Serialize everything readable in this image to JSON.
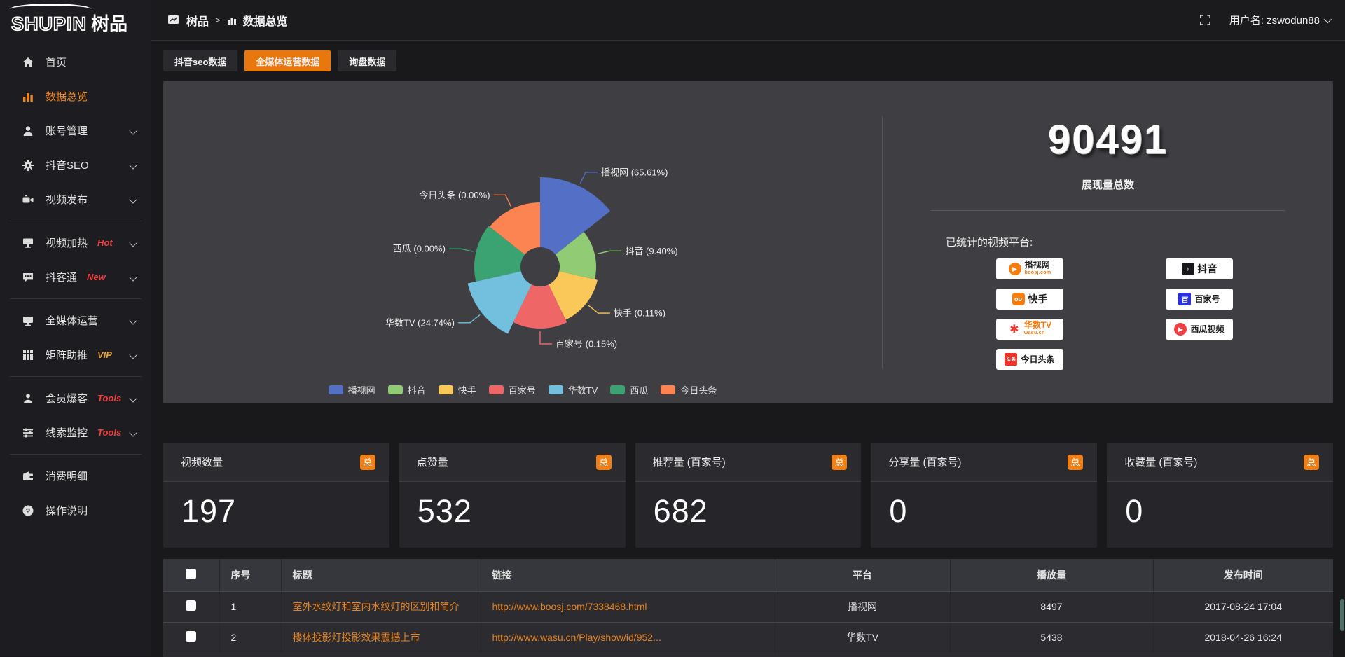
{
  "logo": {
    "en": "SHUPIN",
    "cn": "树品"
  },
  "topbar": {
    "breadcrumb_root": "树品",
    "breadcrumb_sep": ">",
    "breadcrumb_current": "数据总览",
    "username": "用户名: zswodun88"
  },
  "sidebar": {
    "items": [
      {
        "label": "首页"
      },
      {
        "label": "数据总览"
      },
      {
        "label": "账号管理"
      },
      {
        "label": "抖音SEO"
      },
      {
        "label": "视频发布"
      },
      {
        "label": "视频加热",
        "tag": "Hot"
      },
      {
        "label": "抖客通",
        "tag": "New"
      },
      {
        "label": "全媒体运营"
      },
      {
        "label": "矩阵助推",
        "tag": "VIP"
      },
      {
        "label": "会员爆客",
        "tag": "Tools"
      },
      {
        "label": "线索监控",
        "tag": "Tools"
      },
      {
        "label": "消费明细"
      },
      {
        "label": "操作说明"
      }
    ]
  },
  "tabs": [
    {
      "label": "抖音seo数据"
    },
    {
      "label": "全媒体运营数据"
    },
    {
      "label": "询盘数据"
    }
  ],
  "chart_data": {
    "type": "pie",
    "subtype": "nightingale-rose-donut",
    "legend_position": "bottom",
    "label_format": "{name} ({pct}%)",
    "series": [
      {
        "name": "播视网",
        "pct": "65.61",
        "color": "#5470c6"
      },
      {
        "name": "抖音",
        "pct": "9.40",
        "color": "#91cc75"
      },
      {
        "name": "快手",
        "pct": "0.11",
        "color": "#fac858"
      },
      {
        "name": "百家号",
        "pct": "0.15",
        "color": "#ee6666"
      },
      {
        "name": "华数TV",
        "pct": "24.74",
        "color": "#73c0de"
      },
      {
        "name": "西瓜",
        "pct": "0.00",
        "color": "#3ba272"
      },
      {
        "name": "今日头条",
        "pct": "0.00",
        "color": "#fc8452"
      }
    ]
  },
  "summary": {
    "total_value": "90491",
    "total_label": "展现量总数",
    "platforms_title": "已统计的视频平台:",
    "platforms_left": [
      {
        "name": "播视网",
        "sub": "boosj.com"
      },
      {
        "name": "快手"
      },
      {
        "name": "华数TV",
        "sub": "wasu.cn"
      },
      {
        "name": "今日头条"
      }
    ],
    "platforms_right": [
      {
        "name": "抖音"
      },
      {
        "name": "百家号"
      },
      {
        "name": "西瓜视频"
      }
    ],
    "toutiao_logo_text": "头条",
    "baijiahao_logo_text": "百"
  },
  "stat_cards": [
    {
      "title": "视频数量",
      "badge": "总",
      "value": "197"
    },
    {
      "title": "点赞量",
      "badge": "总",
      "value": "532"
    },
    {
      "title": "推荐量 (百家号)",
      "badge": "总",
      "value": "682"
    },
    {
      "title": "分享量 (百家号)",
      "badge": "总",
      "value": "0"
    },
    {
      "title": "收藏量 (百家号)",
      "badge": "总",
      "value": "0"
    }
  ],
  "table": {
    "columns": [
      "序号",
      "标题",
      "链接",
      "平台",
      "播放量",
      "发布时间"
    ],
    "rows": [
      {
        "no": "1",
        "title": "室外水纹灯和室内水纹灯的区别和简介",
        "link": "http://www.boosj.com/7338468.html",
        "platform": "播视网",
        "plays": "8497",
        "time": "2017-08-24 17:04"
      },
      {
        "no": "2",
        "title": "楼体投影灯投影效果震撼上市",
        "link": "http://www.wasu.cn/Play/show/id/952...",
        "platform": "华数TV",
        "plays": "5438",
        "time": "2018-04-26 16:24"
      }
    ]
  },
  "colors": {
    "accent": "#e8770e",
    "link": "#e8821e",
    "tag_hot": "#f03e3e",
    "tag_vip": "#e8a33d"
  }
}
